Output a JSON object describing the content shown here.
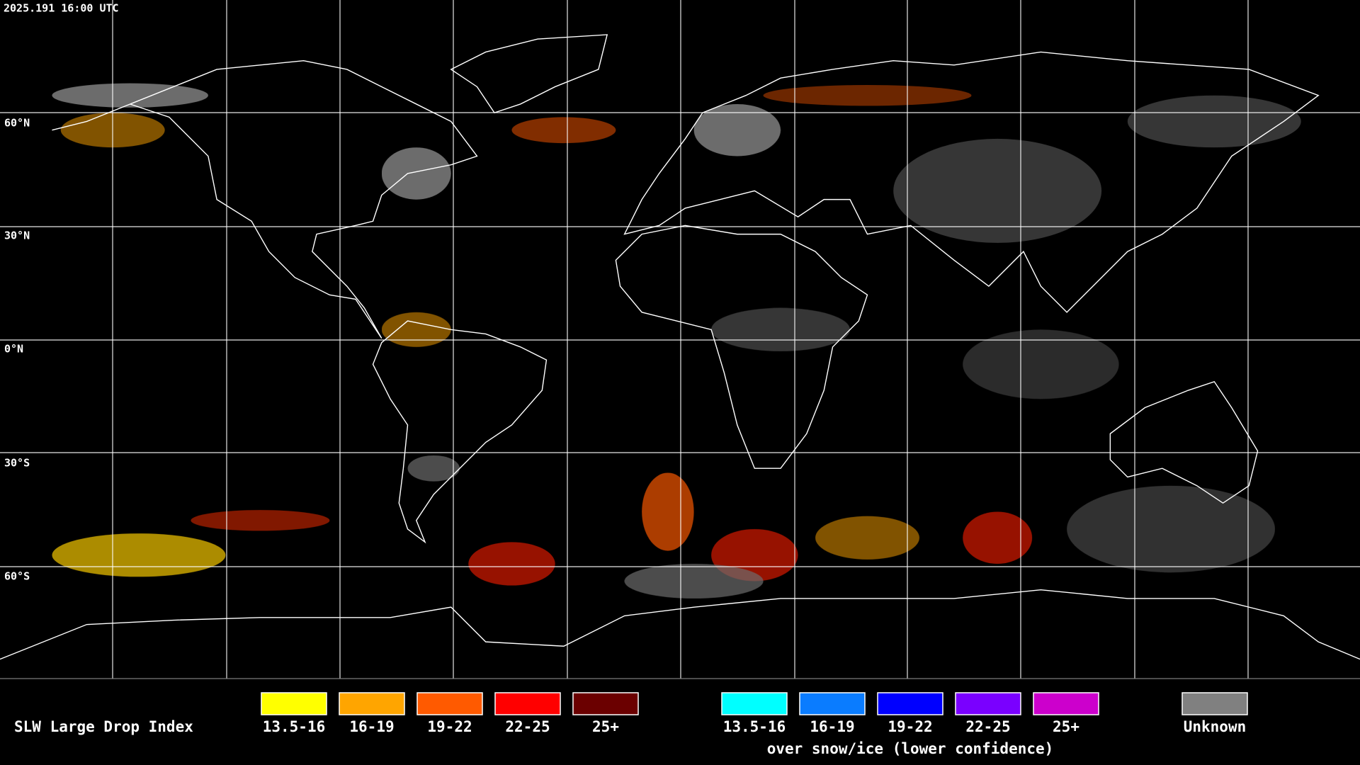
{
  "header": {
    "timestamp": "2025.191 16:00 UTC"
  },
  "lat_labels": [
    "60°N",
    "30°N",
    "0°N",
    "30°S",
    "60°S"
  ],
  "legend": {
    "title": "SLW Large Drop Index",
    "groups": [
      {
        "items": [
          {
            "label": "13.5-16",
            "color": "#ffff00"
          },
          {
            "label": "16-19",
            "color": "#ffa500"
          },
          {
            "label": "19-22",
            "color": "#ff5a00"
          },
          {
            "label": "22-25",
            "color": "#ff0000"
          },
          {
            "label": "25+",
            "color": "#6b0000"
          }
        ]
      },
      {
        "items": [
          {
            "label": "13.5-16",
            "color": "#00ffff"
          },
          {
            "label": "16-19",
            "color": "#0a7cff"
          },
          {
            "label": "19-22",
            "color": "#0000ff"
          },
          {
            "label": "22-25",
            "color": "#7a00ff"
          },
          {
            "label": "25+",
            "color": "#cc00cc"
          }
        ],
        "caption": "over snow/ice (lower confidence)"
      }
    ],
    "unknown": {
      "label": "Unknown",
      "color": "#808080"
    }
  }
}
